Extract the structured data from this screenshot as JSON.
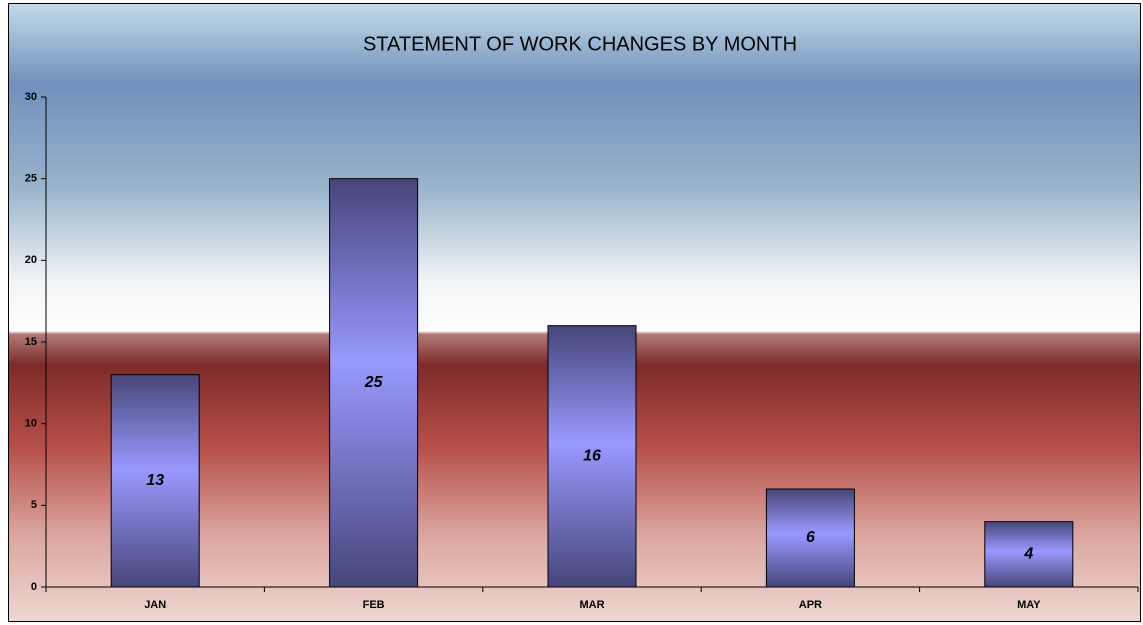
{
  "chart_data": {
    "type": "bar",
    "title": "STATEMENT OF WORK CHANGES BY MONTH",
    "categories": [
      "JAN",
      "FEB",
      "MAR",
      "APR",
      "MAY"
    ],
    "values": [
      13,
      25,
      16,
      6,
      4
    ],
    "color": "#9999ff",
    "ylim": [
      0,
      30
    ],
    "yticks": [
      0,
      5,
      10,
      15,
      20,
      25,
      30
    ]
  }
}
